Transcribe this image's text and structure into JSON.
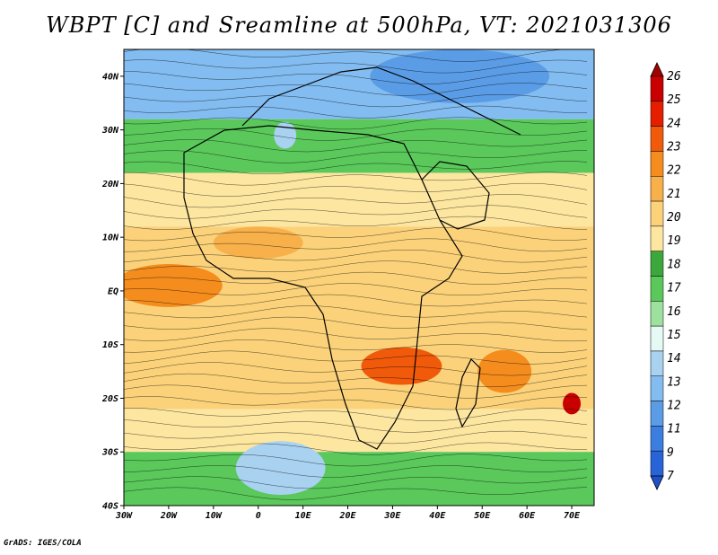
{
  "title": "WBPT [C] and Sreamline at 500hPa, VT: 2021031306",
  "credit": "GrADS: IGES/COLA",
  "map": {
    "lon_range": [
      -30,
      75
    ],
    "lat_range": [
      -40,
      45
    ],
    "lat_ticks": [
      {
        "value": 40,
        "label": "40N"
      },
      {
        "value": 30,
        "label": "30N"
      },
      {
        "value": 20,
        "label": "20N"
      },
      {
        "value": 10,
        "label": "10N"
      },
      {
        "value": 0,
        "label": "EQ"
      },
      {
        "value": -10,
        "label": "10S"
      },
      {
        "value": -20,
        "label": "20S"
      },
      {
        "value": -30,
        "label": "30S"
      },
      {
        "value": -40,
        "label": "40S"
      }
    ],
    "lon_ticks": [
      {
        "value": -30,
        "label": "30W"
      },
      {
        "value": -20,
        "label": "20W"
      },
      {
        "value": -10,
        "label": "10W"
      },
      {
        "value": 0,
        "label": "0"
      },
      {
        "value": 10,
        "label": "10E"
      },
      {
        "value": 20,
        "label": "20E"
      },
      {
        "value": 30,
        "label": "30E"
      },
      {
        "value": 40,
        "label": "40E"
      },
      {
        "value": 50,
        "label": "50E"
      },
      {
        "value": 60,
        "label": "60E"
      },
      {
        "value": 70,
        "label": "70E"
      }
    ]
  },
  "colorbar": {
    "levels": [
      "26",
      "25",
      "24",
      "23",
      "22",
      "21",
      "20",
      "19",
      "18",
      "17",
      "16",
      "15",
      "14",
      "13",
      "12",
      "11",
      "9",
      "7"
    ],
    "colors": [
      "#a50000",
      "#c80000",
      "#e61e00",
      "#f05a0a",
      "#f58c1e",
      "#f8b04a",
      "#fbd27a",
      "#fde6a0",
      "#3ca83c",
      "#5ac85a",
      "#9ee09e",
      "#e6faf5",
      "#a8d2f0",
      "#82bcf0",
      "#5a9ce6",
      "#3c7ee0",
      "#2864d8",
      "#1e50c8"
    ]
  },
  "field": {
    "bands": [
      {
        "lat_top": 45,
        "lat_bot": 32,
        "color": "#82bcf0"
      },
      {
        "lat_top": 32,
        "lat_bot": 22,
        "color": "#5ac85a"
      },
      {
        "lat_top": 22,
        "lat_bot": 12,
        "color": "#fde6a0"
      },
      {
        "lat_top": 12,
        "lat_bot": -22,
        "color": "#fbd27a"
      },
      {
        "lat_top": -22,
        "lat_bot": -30,
        "color": "#fde6a0"
      },
      {
        "lat_top": -30,
        "lat_bot": -40,
        "color": "#5ac85a"
      }
    ],
    "blobs": [
      {
        "lon": -20,
        "lat": 1,
        "rx": 12,
        "ry": 4,
        "color": "#f58c1e"
      },
      {
        "lon": 0,
        "lat": 9,
        "rx": 10,
        "ry": 3,
        "color": "#f8b04a"
      },
      {
        "lon": 32,
        "lat": -14,
        "rx": 9,
        "ry": 3.5,
        "color": "#f05a0a"
      },
      {
        "lon": 55,
        "lat": -15,
        "rx": 6,
        "ry": 4,
        "color": "#f58c1e"
      },
      {
        "lon": 70,
        "lat": -21,
        "rx": 2,
        "ry": 2,
        "color": "#c80000"
      },
      {
        "lon": 5,
        "lat": -33,
        "rx": 10,
        "ry": 5,
        "color": "#a8d2f0"
      },
      {
        "lon": 6,
        "lat": 29,
        "rx": 2.5,
        "ry": 2.5,
        "color": "#a8d2f0"
      },
      {
        "lon": 45,
        "lat": 40,
        "rx": 20,
        "ry": 5,
        "color": "#5a9ce6"
      }
    ]
  }
}
